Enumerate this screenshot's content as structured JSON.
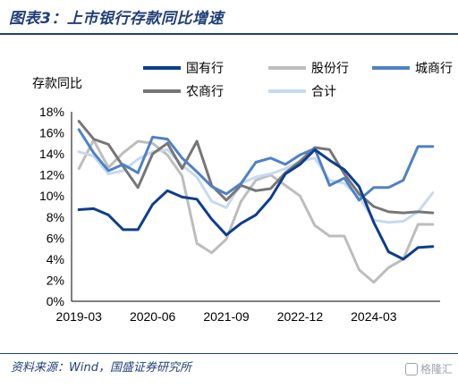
{
  "figure": {
    "title": "图表3：上市银行存款同比增速",
    "source": "资料来源：Wind，国盛证券研究所",
    "watermark": "格隆汇"
  },
  "colors": {
    "title": "#1f3f7a",
    "series": [
      "#0d3d8f",
      "#bdbdbd",
      "#4f81c4",
      "#767676",
      "#c6d9f1"
    ]
  },
  "chart_data": {
    "type": "line",
    "ylabel": "存款同比",
    "ylim": [
      0,
      18
    ],
    "yticks": [
      "0%",
      "2%",
      "4%",
      "6%",
      "8%",
      "10%",
      "12%",
      "14%",
      "16%",
      "18%"
    ],
    "ytick_values": [
      0,
      2,
      4,
      6,
      8,
      10,
      12,
      14,
      16,
      18
    ],
    "x": [
      "2019-03",
      "2019-06",
      "2019-09",
      "2019-12",
      "2020-03",
      "2020-06",
      "2020-09",
      "2020-12",
      "2021-03",
      "2021-06",
      "2021-09",
      "2021-12",
      "2022-03",
      "2022-06",
      "2022-09",
      "2022-12",
      "2023-03",
      "2023-06",
      "2023-09",
      "2023-12",
      "2024-03",
      "2024-06",
      "2024-09",
      "2024-12",
      "2025-03"
    ],
    "xticks": [
      "2019-03",
      "2020-06",
      "2021-09",
      "2022-12",
      "2024-03"
    ],
    "legend_position": "top",
    "grid": false,
    "series": [
      {
        "name": "国有行",
        "values": [
          8.7,
          8.8,
          8.2,
          6.8,
          6.8,
          9.2,
          10.5,
          9.9,
          9.7,
          7.8,
          6.3,
          7.4,
          8.2,
          9.8,
          12.1,
          13.0,
          14.4,
          13.4,
          12.5,
          10.9,
          7.5,
          4.7,
          4.0,
          5.1,
          5.2
        ]
      },
      {
        "name": "股份行",
        "values": [
          12.6,
          15.3,
          12.7,
          14.1,
          15.2,
          15.0,
          13.9,
          11.9,
          5.5,
          4.6,
          5.9,
          9.5,
          11.5,
          12.0,
          11.0,
          10.0,
          7.2,
          6.2,
          6.2,
          3.0,
          1.8,
          3.2,
          4.0,
          7.3,
          7.3
        ]
      },
      {
        "name": "城商行",
        "values": [
          16.3,
          14.1,
          12.4,
          13.0,
          12.2,
          15.6,
          15.4,
          13.6,
          12.3,
          10.9,
          10.2,
          11.2,
          13.2,
          13.6,
          13.0,
          13.9,
          14.5,
          11.0,
          11.7,
          9.6,
          10.8,
          10.8,
          11.5,
          14.7,
          14.7
        ]
      },
      {
        "name": "农商行",
        "values": [
          17.1,
          15.4,
          14.9,
          12.8,
          10.8,
          14.0,
          15.0,
          12.6,
          15.2,
          11.0,
          9.6,
          11.0,
          10.5,
          10.7,
          12.2,
          13.3,
          14.6,
          14.4,
          12.1,
          10.2,
          9.0,
          8.5,
          8.4,
          8.5,
          8.4
        ]
      },
      {
        "name": "合计",
        "values": [
          14.2,
          13.8,
          12.1,
          12.4,
          13.5,
          14.2,
          14.4,
          12.9,
          11.8,
          9.5,
          8.9,
          11.2,
          11.8,
          12.1,
          12.6,
          13.3,
          13.6,
          11.5,
          11.2,
          9.9,
          7.7,
          7.5,
          7.6,
          8.5,
          10.3
        ]
      }
    ]
  }
}
